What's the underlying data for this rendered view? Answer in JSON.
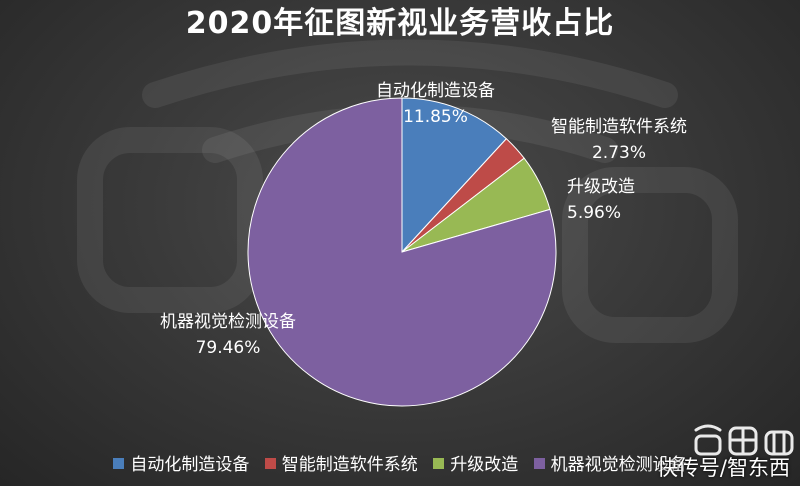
{
  "chart_data": {
    "type": "pie",
    "title": "2020年征图新视业务营收占比",
    "slices": [
      {
        "label": "自动化制造设备",
        "value": 11.85,
        "value_label": "11.85%",
        "color": "#4a7ebb"
      },
      {
        "label": "智能制造软件系统",
        "value": 2.73,
        "value_label": "2.73%",
        "color": "#be4b48"
      },
      {
        "label": "升级改造",
        "value": 5.96,
        "value_label": "5.96%",
        "color": "#98b954"
      },
      {
        "label": "机器视觉检测设备",
        "value": 79.46,
        "value_label": "79.46%",
        "color": "#7d60a0"
      }
    ],
    "legend_position": "bottom",
    "start_angle_deg": 0,
    "direction": "clockwise"
  },
  "watermark": {
    "text": "快传号/智东西",
    "icon": "zhidongxi-logo"
  }
}
